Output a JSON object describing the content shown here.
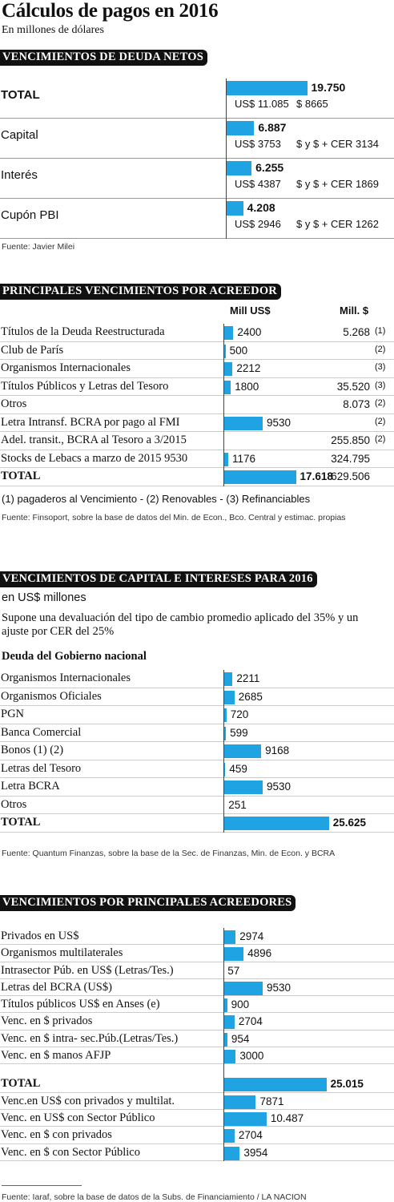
{
  "header": {
    "title": "Cálculos de pagos en 2016",
    "subtitle": "En millones de dólares"
  },
  "chart_data": [
    {
      "type": "bar",
      "orientation": "horizontal",
      "title": "VENCIMIENTOS DE DEUDA NETOS",
      "categories": [
        "TOTAL",
        "Capital",
        "Interés",
        "Cupón PBI"
      ],
      "values": [
        19750,
        6887,
        6255,
        4208
      ],
      "value_labels": [
        "19.750",
        "6.887",
        "6.255",
        "4.208"
      ],
      "details": [
        [
          "US$ 11.085",
          "$ 8665"
        ],
        [
          "US$ 3753",
          "$ y $ + CER 3134"
        ],
        [
          "US$ 4387",
          "$ y $ + CER 1869"
        ],
        [
          "US$ 2946",
          "$ y $ + CER 1262"
        ]
      ],
      "color": "#1fa3e3",
      "highlight_rows": [
        0
      ],
      "source": "Fuente: Javier Milei"
    },
    {
      "type": "bar",
      "orientation": "horizontal",
      "title": "PRINCIPALES VENCIMIENTOS POR ACREEDOR",
      "categories": [
        "Títulos de la Deuda Reestructurada",
        "Club de París",
        "Organismos Internacionales",
        "Títulos Públicos y Letras del Tesoro",
        "Otros",
        "Letra Intransf. BCRA por pago al FMI",
        "Adel. transit., BCRA al Tesoro a 3/2015",
        "Stocks de Lebacs a marzo de 2015  9530",
        "TOTAL"
      ],
      "series": [
        {
          "name": "Mill US$",
          "color": "#1fa3e3",
          "values": [
            2400,
            500,
            2212,
            1800,
            null,
            9530,
            null,
            1176,
            17618
          ],
          "value_labels": [
            "2400",
            "500",
            "2212",
            "1800",
            null,
            "9530",
            null,
            "1176",
            "17.618"
          ]
        },
        {
          "name": "Mill. $",
          "values": [
            5268,
            null,
            null,
            35520,
            8073,
            null,
            255850,
            324795,
            629506
          ],
          "value_labels": [
            "5.268",
            null,
            null,
            "35.520",
            "8.073",
            null,
            "255.850",
            "324.795",
            "629.506"
          ]
        }
      ],
      "row_notes": [
        "(1)",
        "(2)",
        "(3)",
        "(3)",
        "(2)",
        "(2)",
        "(2)",
        null,
        null
      ],
      "highlight_rows": [
        8
      ],
      "footnote": "(1) pagaderos al Vencimiento - (2) Renovables - (3) Refinanciables",
      "source": "Fuente: Finsoport, sobre la base de datos del Min. de Econ., Bco. Central y estimac. propias"
    },
    {
      "type": "bar",
      "orientation": "horizontal",
      "title": "VENCIMIENTOS DE CAPITAL E INTERESES PARA 2016",
      "unit": "en US$ millones",
      "note": "Supone una devaluación del tipo de cambio promedio aplicado del 35% y un ajuste por CER del 25%",
      "subtitle": "Deuda del Gobierno nacional",
      "categories": [
        "Organismos Internacionales",
        "Organismos Oficiales",
        "PGN",
        "Banca Comercial",
        "Bonos (1) (2)",
        "Letras del Tesoro",
        "Letra BCRA",
        "Otros",
        "TOTAL"
      ],
      "values": [
        2211,
        2685,
        720,
        599,
        9168,
        459,
        9530,
        251,
        25625
      ],
      "value_labels": [
        "2211",
        "2685",
        "720",
        "599",
        "9168",
        "459",
        "9530",
        "251",
        "25.625"
      ],
      "color": "#1fa3e3",
      "highlight_rows": [
        8
      ],
      "source": "Fuente: Quantum Finanzas, sobre la base de la Sec. de Finanzas, Min. de Econ. y BCRA"
    },
    {
      "type": "bar",
      "orientation": "horizontal",
      "title": "VENCIMIENTOS POR PRINCIPALES ACREEDORES",
      "categories": [
        "Privados en US$",
        "Organismos multilaterales",
        "Intrasector Púb. en US$ (Letras/Tes.)",
        "Letras del BCRA (US$)",
        "Títulos públicos US$ en Anses (e)",
        "Venc. en  $ privados",
        "Venc. en $ intra- sec.Púb.(Letras/Tes.)",
        "Venc. en $ manos AFJP",
        "TOTAL",
        "Venc.en US$ con privados y multilat.",
        "Venc. en US$ con Sector Público",
        "Venc. en $ con privados",
        "Venc. en $ con Sector Público"
      ],
      "values": [
        2974,
        4896,
        57,
        9530,
        900,
        2704,
        954,
        3000,
        25015,
        7871,
        10487,
        2704,
        3954
      ],
      "value_labels": [
        "2974",
        "4896",
        "57",
        "9530",
        "900",
        "2704",
        "954",
        "3000",
        "25.015",
        "7871",
        "10.487",
        "2704",
        "3954"
      ],
      "color": "#1fa3e3",
      "highlight_rows": [
        8
      ],
      "source": "Fuente:  Iaraf, sobre la base de datos de la Subs. de Financiamiento / LA NACION"
    }
  ]
}
